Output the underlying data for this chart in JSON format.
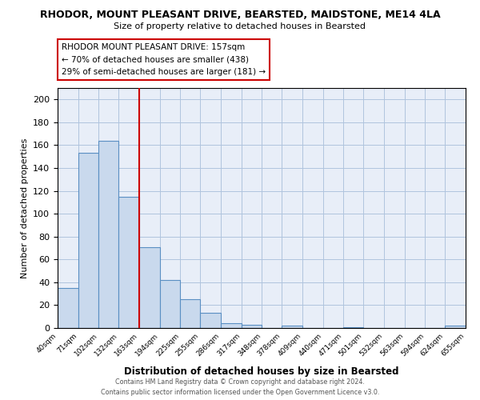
{
  "title": "RHODOR, MOUNT PLEASANT DRIVE, BEARSTED, MAIDSTONE, ME14 4LA",
  "subtitle": "Size of property relative to detached houses in Bearsted",
  "xlabel": "Distribution of detached houses by size in Bearsted",
  "ylabel": "Number of detached properties",
  "bin_edges": [
    40,
    71,
    102,
    132,
    163,
    194,
    225,
    255,
    286,
    317,
    348,
    378,
    409,
    440,
    471,
    501,
    532,
    563,
    594,
    624,
    655
  ],
  "bin_labels": [
    "40sqm",
    "71sqm",
    "102sqm",
    "132sqm",
    "163sqm",
    "194sqm",
    "225sqm",
    "255sqm",
    "286sqm",
    "317sqm",
    "348sqm",
    "378sqm",
    "409sqm",
    "440sqm",
    "471sqm",
    "501sqm",
    "532sqm",
    "563sqm",
    "594sqm",
    "624sqm",
    "655sqm"
  ],
  "counts": [
    35,
    153,
    164,
    115,
    71,
    42,
    25,
    13,
    4,
    3,
    0,
    2,
    0,
    0,
    1,
    0,
    0,
    0,
    0,
    2
  ],
  "bar_facecolor": "#c9d9ed",
  "bar_edgecolor": "#5a8fc3",
  "grid_color": "#b0c4de",
  "background_color": "#ffffff",
  "axes_background": "#e8eef8",
  "vline_x": 163,
  "vline_color": "#cc0000",
  "annotation_lines": [
    "RHODOR MOUNT PLEASANT DRIVE: 157sqm",
    "← 70% of detached houses are smaller (438)",
    "29% of semi-detached houses are larger (181) →"
  ],
  "ylim": [
    0,
    210
  ],
  "yticks": [
    0,
    20,
    40,
    60,
    80,
    100,
    120,
    140,
    160,
    180,
    200
  ],
  "footer_line1": "Contains HM Land Registry data © Crown copyright and database right 2024.",
  "footer_line2": "Contains public sector information licensed under the Open Government Licence v3.0."
}
